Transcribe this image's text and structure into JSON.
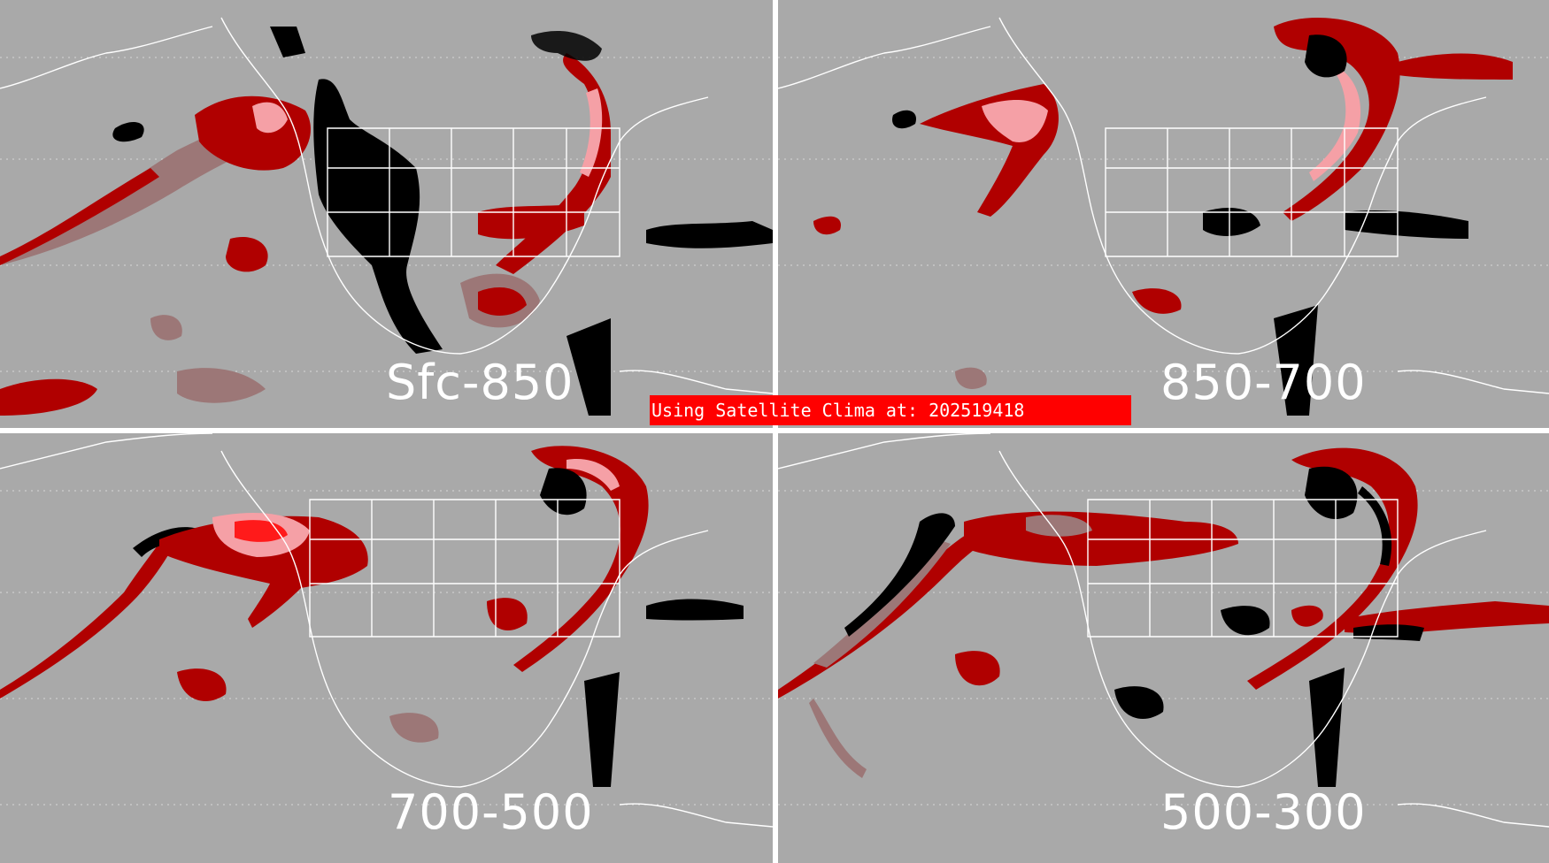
{
  "panels": [
    {
      "id": "tl",
      "label": "Sfc-850"
    },
    {
      "id": "tr",
      "label": "850-700"
    },
    {
      "id": "bl",
      "label": "700-500"
    },
    {
      "id": "br",
      "label": "500-300"
    }
  ],
  "banner": {
    "text": "Using Satellite Clima at: 202519418"
  },
  "colors": {
    "background": "#a9a9a9",
    "divider": "#ffffff",
    "coastlines": "#ffffff",
    "black_category": "#000000",
    "dark_red_category": "#b00000",
    "muted_red_category": "#9c7777",
    "pink_category": "#f5a0a6",
    "bright_red_category": "#ff1a1a",
    "banner": "#ff0000"
  }
}
